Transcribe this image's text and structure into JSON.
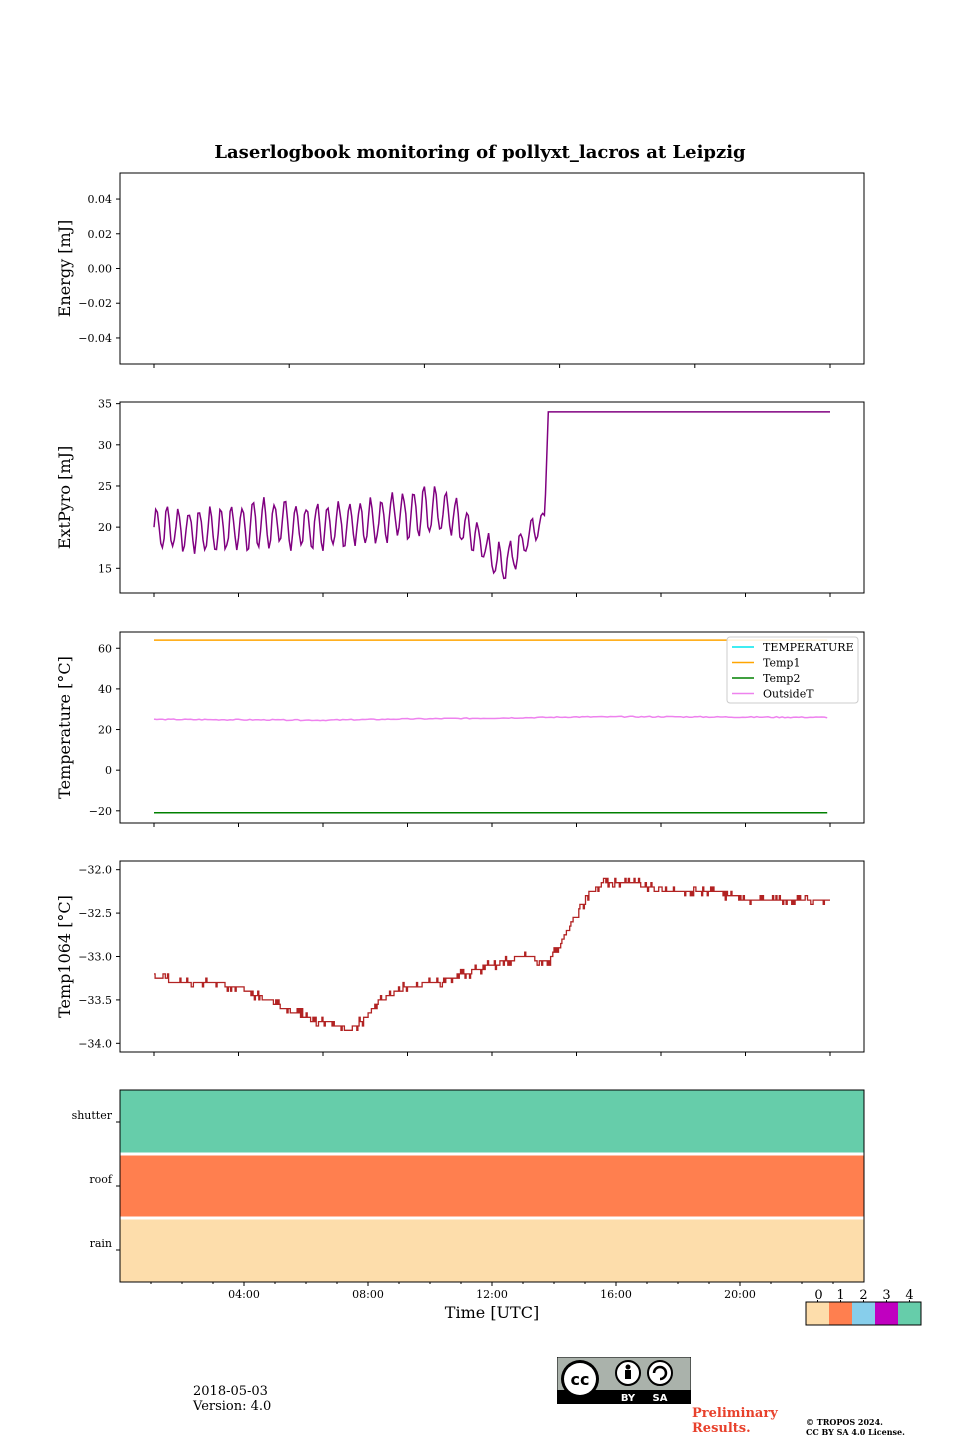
{
  "figure": {
    "title": "Laserlogbook monitoring of pollyxt_lacros at Leipzig",
    "date": "2018-05-03",
    "version": "Version: 4.0",
    "preliminary_line1": "Preliminary",
    "preliminary_line2": "Results.",
    "copyright_line1": "© TROPOS 2024.",
    "copyright_line2": "CC BY SA 4.0 License.",
    "license_badge": {
      "by": "BY",
      "sa": "SA",
      "cc": "cc"
    }
  },
  "chart_data": [
    {
      "type": "line",
      "id": "energy",
      "ylabel": "Energy [mJ]",
      "ylim": [
        -0.055,
        0.055
      ],
      "yticks": [
        0.04,
        0.02,
        0.0,
        -0.02,
        -0.04
      ],
      "yticklabels": [
        "0.04",
        "0.02",
        "0.00",
        "−0.02",
        "−0.04"
      ],
      "series": []
    },
    {
      "type": "line",
      "id": "extpyro",
      "ylabel": "ExtPyro [mJ]",
      "ylim": [
        12,
        35.2
      ],
      "yticks": [
        15,
        20,
        25,
        30,
        35
      ],
      "yticklabels": [
        "15",
        "20",
        "25",
        "30",
        "35"
      ],
      "series": [
        {
          "color": "#800080",
          "description": "oscillating 17-24 mJ from 00:00 to 13:50 with dip to ~13 near 12:30, then step to 34 mJ until 24:00",
          "x_hours": [
            0.0,
            2.0,
            4.0,
            6.0,
            8.0,
            9.5,
            10.5,
            11.5,
            12.3,
            12.8,
            13.5,
            13.9,
            14.0,
            24.0
          ],
          "y_center": [
            20.0,
            19.5,
            20.5,
            20.0,
            21.0,
            22.0,
            21.5,
            18.5,
            15.5,
            16.5,
            20.0,
            21.0,
            34.0,
            34.0
          ],
          "amplitude": [
            2.5,
            2.5,
            2.8,
            2.5,
            2.5,
            3.0,
            2.5,
            2.0,
            2.0,
            2.0,
            1.8,
            1.5,
            0.0,
            0.0
          ]
        }
      ]
    },
    {
      "type": "line",
      "id": "temperature",
      "ylabel": "Temperature [°C]",
      "ylim": [
        -26,
        68
      ],
      "yticks": [
        60,
        40,
        20,
        0,
        -20
      ],
      "yticklabels": [
        "60",
        "40",
        "20",
        "0",
        "−20"
      ],
      "legend": "top-right",
      "series": [
        {
          "name": "TEMPERATURE",
          "color": "#00e5ee",
          "x_hours": [],
          "y": []
        },
        {
          "name": "Temp1",
          "color": "#ffa500",
          "x_hours": [
            0,
            24
          ],
          "y": [
            64,
            64
          ]
        },
        {
          "name": "Temp2",
          "color": "#008000",
          "x_hours": [
            0,
            24
          ],
          "y": [
            -21,
            -21
          ]
        },
        {
          "name": "OutsideT",
          "color": "#ee82ee",
          "x_hours": [
            0,
            3,
            6,
            9,
            12,
            15,
            18,
            21,
            24
          ],
          "y": [
            25.0,
            24.8,
            24.6,
            25.2,
            25.6,
            26.2,
            26.3,
            26.1,
            26.0
          ]
        }
      ]
    },
    {
      "type": "line",
      "id": "temp1064",
      "ylabel": "Temp1064 [°C]",
      "ylim": [
        -34.1,
        -31.9
      ],
      "yticks": [
        -32.0,
        -32.5,
        -33.0,
        -33.5,
        -34.0
      ],
      "yticklabels": [
        "−32.0",
        "−32.5",
        "−33.0",
        "−33.5",
        "−34.0"
      ],
      "series": [
        {
          "color": "#b22222",
          "x_hours": [
            0.0,
            1.0,
            2.0,
            3.0,
            4.0,
            5.0,
            6.0,
            7.0,
            7.5,
            8.0,
            9.0,
            10.0,
            11.0,
            12.0,
            13.0,
            14.0,
            14.5,
            15.0,
            15.5,
            16.0,
            17.0,
            18.0,
            20.0,
            21.0,
            22.0,
            24.0
          ],
          "y": [
            -33.25,
            -33.3,
            -33.3,
            -33.35,
            -33.5,
            -33.65,
            -33.75,
            -33.85,
            -33.7,
            -33.5,
            -33.35,
            -33.3,
            -33.2,
            -33.1,
            -33.0,
            -33.05,
            -32.8,
            -32.5,
            -32.25,
            -32.15,
            -32.15,
            -32.25,
            -32.25,
            -32.35,
            -32.35,
            -32.35
          ]
        }
      ]
    },
    {
      "type": "heatmap",
      "id": "status",
      "xlabel": "Time [UTC]",
      "rows": [
        "shutter",
        "roof",
        "rain"
      ],
      "row_values": [
        4,
        1,
        0
      ],
      "xticks_hours": [
        4,
        8,
        12,
        16,
        20
      ],
      "xticklabels": [
        "04:00",
        "08:00",
        "12:00",
        "16:00",
        "20:00"
      ],
      "colorbar": {
        "ticks": [
          "0",
          "1",
          "2",
          "3",
          "4"
        ],
        "colors": [
          "#fdddab",
          "#ff7f4f",
          "#87ceeb",
          "#c000c0",
          "#66cdaa"
        ]
      }
    }
  ]
}
